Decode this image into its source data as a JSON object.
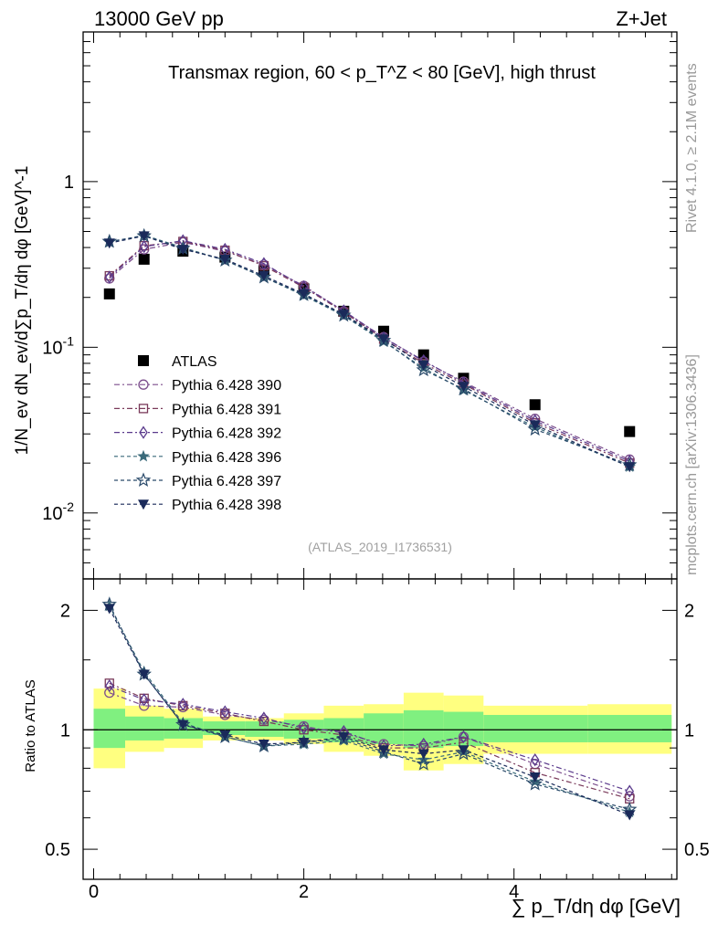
{
  "header": {
    "left": "13000 GeV pp",
    "right": "Z+Jet"
  },
  "side_labels": {
    "rivet": "Rivet 4.1.0, ≥ 2.1M events",
    "mcplots": "mcplots.cern.ch [arXiv:1306.3436]"
  },
  "chart_data": [
    {
      "type": "scatter",
      "title": "Transmax region, 60 < p_T^Z < 80 [GeV], high thrust",
      "ylabel": "1/N_ev dN_ev/d∑p_T/dη dφ [GeV]^-1",
      "xlabel": "∑ p_T/dη dφ [GeV]",
      "yscale": "log",
      "ylim": [
        0.004,
        8
      ],
      "xlim": [
        -0.1,
        5.55
      ],
      "x_ticks": [
        "0",
        "2",
        "4"
      ],
      "y_ticks": [
        "10^-2",
        "10^-1",
        "1"
      ],
      "watermark": "(ATLAS_2019_I1736531)",
      "x": [
        0.15,
        0.48,
        0.85,
        1.25,
        1.62,
        2.0,
        2.38,
        2.76,
        3.14,
        3.52,
        4.2,
        5.1
      ],
      "series": [
        {
          "name": "ATLAS",
          "marker": "square",
          "color": "#000000",
          "values": [
            0.21,
            0.34,
            0.38,
            0.35,
            0.29,
            0.225,
            0.165,
            0.125,
            0.09,
            0.065,
            0.045,
            0.031
          ]
        },
        {
          "name": "Pythia 6.428 390",
          "marker": "circle-open",
          "color": "#7b4d8c",
          "values": [
            0.26,
            0.39,
            0.43,
            0.38,
            0.315,
            0.235,
            0.165,
            0.115,
            0.082,
            0.062,
            0.037,
            0.021
          ]
        },
        {
          "name": "Pythia 6.428 391",
          "marker": "square-open",
          "color": "#7a3a5a",
          "values": [
            0.27,
            0.41,
            0.435,
            0.385,
            0.31,
            0.23,
            0.163,
            0.112,
            0.08,
            0.06,
            0.035,
            0.02
          ]
        },
        {
          "name": "Pythia 6.428 392",
          "marker": "diamond-open",
          "color": "#5a3a8c",
          "values": [
            0.265,
            0.405,
            0.44,
            0.39,
            0.32,
            0.232,
            0.166,
            0.114,
            0.083,
            0.061,
            0.036,
            0.0205
          ]
        },
        {
          "name": "Pythia 6.428 396",
          "marker": "star",
          "color": "#3a6a7a",
          "values": [
            0.43,
            0.475,
            0.4,
            0.335,
            0.265,
            0.205,
            0.155,
            0.108,
            0.075,
            0.055,
            0.033,
            0.019
          ]
        },
        {
          "name": "Pythia 6.428 397",
          "marker": "star-open",
          "color": "#2a4a6a",
          "values": [
            0.435,
            0.47,
            0.395,
            0.335,
            0.265,
            0.208,
            0.156,
            0.11,
            0.073,
            0.056,
            0.032,
            0.0195
          ]
        },
        {
          "name": "Pythia 6.428 398",
          "marker": "triangle-down",
          "color": "#1a2a5a",
          "values": [
            0.425,
            0.47,
            0.39,
            0.34,
            0.27,
            0.21,
            0.158,
            0.112,
            0.078,
            0.058,
            0.034,
            0.019
          ]
        }
      ]
    },
    {
      "type": "scatter",
      "ylabel": "Ratio to ATLAS",
      "yscale": "log",
      "ylim": [
        0.42,
        2.4
      ],
      "y_ticks": [
        "0.5",
        "1",
        "2"
      ],
      "x": [
        0.15,
        0.48,
        0.85,
        1.25,
        1.62,
        2.0,
        2.38,
        2.76,
        3.14,
        3.52,
        4.2,
        5.1
      ],
      "band_edges": [
        0,
        0.3,
        0.67,
        1.04,
        1.44,
        1.81,
        2.19,
        2.57,
        2.95,
        3.33,
        3.71,
        4.7,
        5.5
      ],
      "band_inner": [
        [
          0.9,
          1.13
        ],
        [
          0.94,
          1.08
        ],
        [
          0.95,
          1.07
        ],
        [
          0.97,
          1.05
        ],
        [
          0.96,
          1.05
        ],
        [
          0.95,
          1.06
        ],
        [
          0.93,
          1.07
        ],
        [
          0.92,
          1.1
        ],
        [
          0.9,
          1.12
        ],
        [
          0.91,
          1.11
        ],
        [
          0.93,
          1.09
        ],
        [
          0.93,
          1.09
        ]
      ],
      "band_outer": [
        [
          0.8,
          1.27
        ],
        [
          0.88,
          1.15
        ],
        [
          0.9,
          1.13
        ],
        [
          0.94,
          1.08
        ],
        [
          0.94,
          1.07
        ],
        [
          0.92,
          1.1
        ],
        [
          0.88,
          1.15
        ],
        [
          0.86,
          1.16
        ],
        [
          0.79,
          1.24
        ],
        [
          0.82,
          1.22
        ],
        [
          0.87,
          1.15
        ],
        [
          0.87,
          1.16
        ]
      ],
      "series": [
        {
          "name": "Pythia 6.428 390",
          "marker": "circle-open",
          "color": "#7b4d8c",
          "values": [
            1.24,
            1.15,
            1.14,
            1.09,
            1.06,
            1.02,
            0.98,
            0.92,
            0.91,
            0.96,
            0.82,
            0.68
          ]
        },
        {
          "name": "Pythia 6.428 391",
          "marker": "square-open",
          "color": "#7a3a5a",
          "values": [
            1.31,
            1.2,
            1.15,
            1.1,
            1.05,
            1.0,
            0.97,
            0.9,
            0.9,
            0.93,
            0.78,
            0.67
          ]
        },
        {
          "name": "Pythia 6.428 392",
          "marker": "diamond-open",
          "color": "#5a3a8c",
          "values": [
            1.29,
            1.19,
            1.16,
            1.11,
            1.07,
            1.01,
            0.99,
            0.91,
            0.92,
            0.96,
            0.84,
            0.7
          ]
        },
        {
          "name": "Pythia 6.428 396",
          "marker": "star",
          "color": "#3a6a7a",
          "values": [
            2.05,
            1.4,
            1.04,
            0.96,
            0.91,
            0.92,
            0.94,
            0.87,
            0.84,
            0.88,
            0.74,
            0.62
          ]
        },
        {
          "name": "Pythia 6.428 397",
          "marker": "star-open",
          "color": "#2a4a6a",
          "values": [
            2.07,
            1.38,
            1.03,
            0.96,
            0.91,
            0.93,
            0.95,
            0.88,
            0.82,
            0.87,
            0.73,
            0.63
          ]
        },
        {
          "name": "Pythia 6.428 398",
          "marker": "triangle-down",
          "color": "#1a2a5a",
          "values": [
            2.02,
            1.38,
            1.03,
            0.97,
            0.92,
            0.93,
            0.96,
            0.89,
            0.87,
            0.89,
            0.76,
            0.61
          ]
        }
      ]
    }
  ]
}
